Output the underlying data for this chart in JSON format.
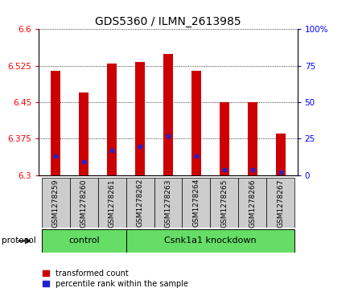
{
  "title": "GDS5360 / ILMN_2613985",
  "samples": [
    "GSM1278259",
    "GSM1278260",
    "GSM1278261",
    "GSM1278262",
    "GSM1278263",
    "GSM1278264",
    "GSM1278265",
    "GSM1278266",
    "GSM1278267"
  ],
  "red_values": [
    6.515,
    6.47,
    6.53,
    6.533,
    6.55,
    6.515,
    6.45,
    6.45,
    6.385
  ],
  "blue_values_pct": [
    13,
    9,
    17,
    20,
    27,
    13,
    4,
    4,
    2
  ],
  "ylim_left": [
    6.3,
    6.6
  ],
  "ylim_right": [
    0,
    100
  ],
  "yticks_left": [
    6.3,
    6.375,
    6.45,
    6.525,
    6.6
  ],
  "ytick_labels_left": [
    "6.3",
    "6.375",
    "6.45",
    "6.525",
    "6.6"
  ],
  "yticks_right": [
    0,
    25,
    50,
    75,
    100
  ],
  "ytick_labels_right": [
    "0",
    "25",
    "50",
    "75",
    "100%"
  ],
  "bar_bottom": 6.3,
  "bar_color": "#cc0000",
  "blue_color": "#2222cc",
  "control_samples": [
    0,
    1,
    2
  ],
  "knockdown_samples": [
    3,
    4,
    5,
    6,
    7,
    8
  ],
  "control_label": "control",
  "knockdown_label": "Csnk1a1 knockdown",
  "protocol_label": "protocol",
  "legend_red": "transformed count",
  "legend_blue": "percentile rank within the sample",
  "group_color": "#66dd66",
  "tick_area_color": "#cccccc",
  "bar_width": 0.35,
  "title_fontsize": 10,
  "axis_label_fontsize": 7.5,
  "sample_fontsize": 6.5,
  "group_fontsize": 8,
  "legend_fontsize": 7
}
